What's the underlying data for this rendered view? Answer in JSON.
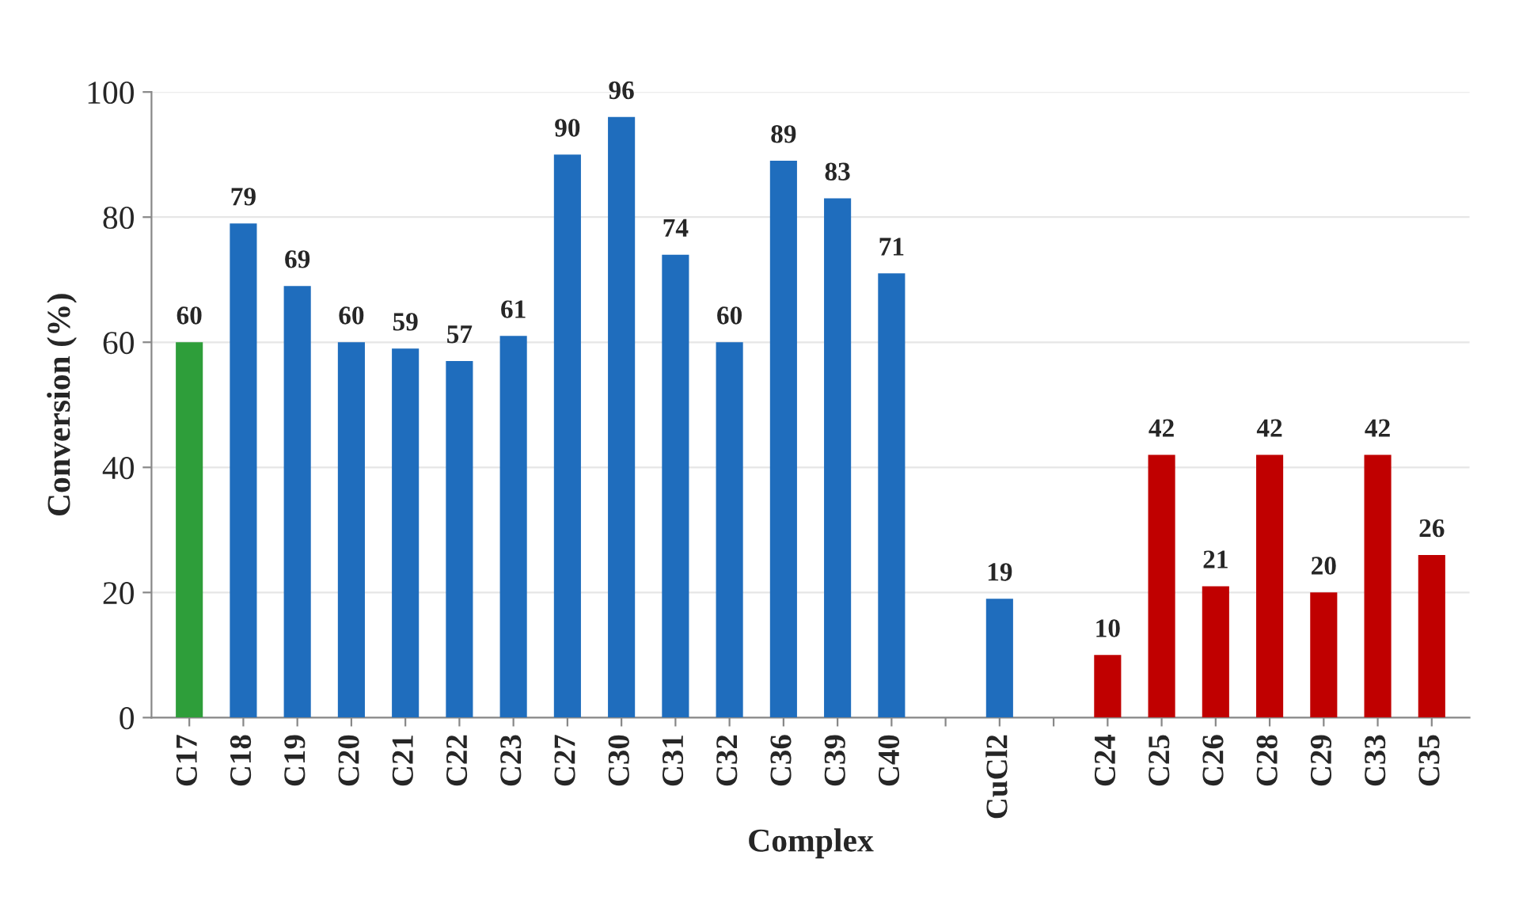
{
  "chart_data": {
    "type": "bar",
    "xlabel": "Complex",
    "ylabel": "Conversion (%)",
    "categories": [
      "C17",
      "C18",
      "C19",
      "C20",
      "C21",
      "C22",
      "C23",
      "C27",
      "C30",
      "C31",
      "C32",
      "C36",
      "C39",
      "C40",
      null,
      "CuCl2",
      null,
      "C24",
      "C25",
      "C26",
      "C28",
      "C29",
      "C33",
      "C35"
    ],
    "values": [
      60,
      79,
      69,
      60,
      59,
      57,
      61,
      90,
      96,
      74,
      60,
      89,
      83,
      71,
      null,
      19,
      null,
      10,
      42,
      21,
      42,
      20,
      42,
      26
    ],
    "colors": [
      "#2e9e3a",
      "#1f6dbd",
      "#1f6dbd",
      "#1f6dbd",
      "#1f6dbd",
      "#1f6dbd",
      "#1f6dbd",
      "#1f6dbd",
      "#1f6dbd",
      "#1f6dbd",
      "#1f6dbd",
      "#1f6dbd",
      "#1f6dbd",
      "#1f6dbd",
      null,
      "#1f6dbd",
      null,
      "#c00000",
      "#c00000",
      "#c00000",
      "#c00000",
      "#c00000",
      "#c00000",
      "#c00000"
    ],
    "ylim": [
      0,
      100
    ],
    "yticks": [
      0,
      20,
      40,
      60,
      80,
      100
    ],
    "grid": "y",
    "data_labels": true
  }
}
